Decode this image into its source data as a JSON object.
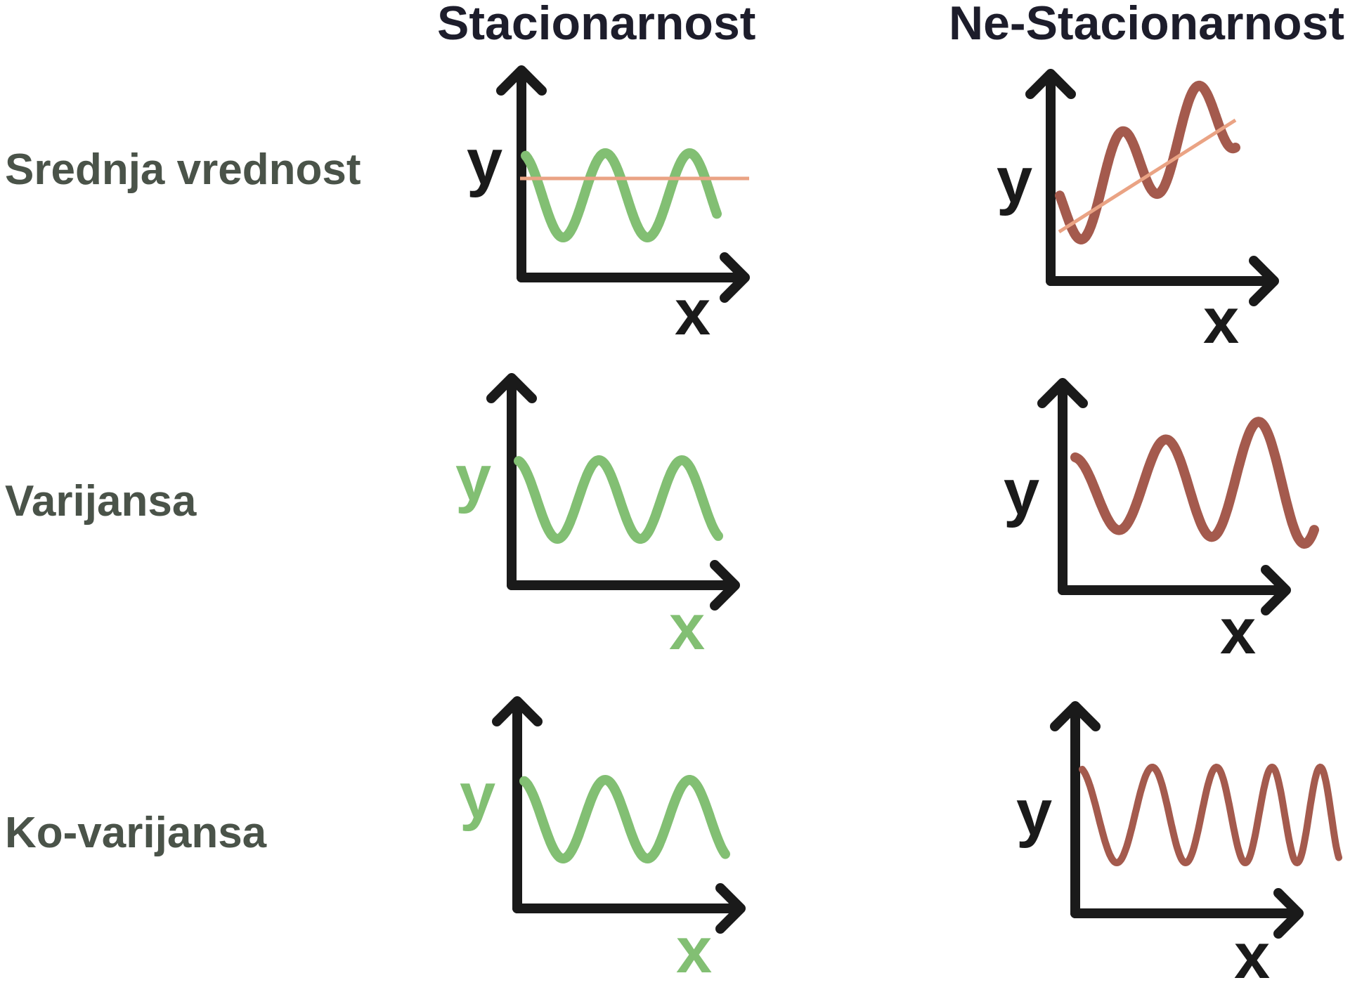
{
  "columns": {
    "stationary": "Stacionarnost",
    "non_stationary": "Ne-Stacionarnost"
  },
  "rows": {
    "mean": "Srednja vrednost",
    "variance": "Varijansa",
    "covariance": "Ko-varijansa"
  },
  "axis_labels": {
    "y": "y",
    "x": "x"
  },
  "colors": {
    "axis": "#1a1a1a",
    "label_text": "#4a5349",
    "header_text": "#1d1d2b",
    "stationary_curve": "#82bf73",
    "non_stationary_curve": "#a45a4d",
    "mean_line": "#eaa384"
  }
}
